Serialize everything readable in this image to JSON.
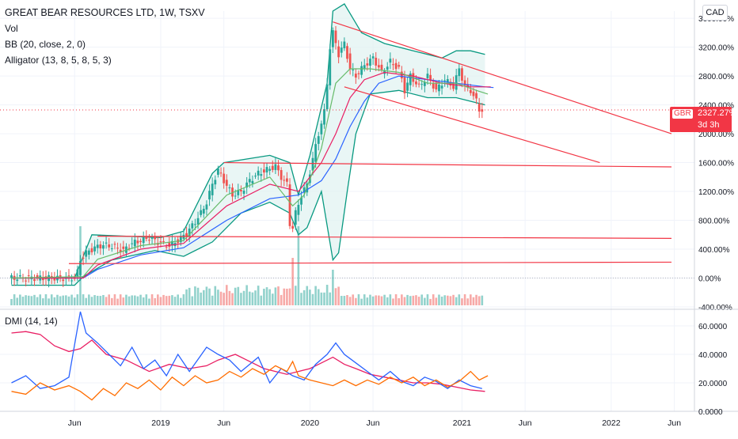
{
  "legend": {
    "title": "GREAT BEAR RESOURCES LTD, 1W, TSXV",
    "vol": "Vol",
    "bb": "BB (20, close, 2, 0)",
    "alligator": "Alligator (13, 8, 5, 8, 5, 3)"
  },
  "dmi_legend": "DMI (14, 14)",
  "currency": "CAD",
  "price_badge": {
    "symbol": "GBR",
    "value": "2327.27%",
    "countdown": "3d 3h"
  },
  "colors": {
    "up": "#26a69a",
    "down": "#ef5350",
    "trendline": "#f23645",
    "bb_upper": "#089981",
    "bb_fill": "#e0f2f1",
    "jaw": "#2962ff",
    "teeth": "#e91e63",
    "lips": "#66bb6a",
    "di_plus": "#2962ff",
    "di_minus": "#ff6d00",
    "adx": "#e91e63"
  },
  "chart_data": [
    {
      "type": "candlestick",
      "title": "GREAT BEAR RESOURCES LTD, 1W, TSXV",
      "ylabel": "",
      "x_ticks": [
        "Jun",
        "2019",
        "Jun",
        "2020",
        "Jun",
        "2021",
        "Jun",
        "2022",
        "Jun"
      ],
      "y_ticks": [
        "3600.00%",
        "3200.00%",
        "2800.00%",
        "2400.00%",
        "2000.00%",
        "1600.00%",
        "1200.00%",
        "800.00%",
        "400.00%",
        "0.00%",
        "-400.00%"
      ],
      "ylim": [
        -400,
        3700
      ],
      "x_axis": "weeks from Jan 2018 to Dec 2022",
      "price_path": [
        [
          0,
          0
        ],
        [
          23,
          0
        ],
        [
          24,
          80
        ],
        [
          25,
          250
        ],
        [
          27,
          350
        ],
        [
          30,
          420
        ],
        [
          33,
          460
        ],
        [
          37,
          430
        ],
        [
          40,
          380
        ],
        [
          43,
          480
        ],
        [
          46,
          520
        ],
        [
          49,
          560
        ],
        [
          52,
          500
        ],
        [
          56,
          450
        ],
        [
          59,
          520
        ],
        [
          62,
          620
        ],
        [
          65,
          780
        ],
        [
          67,
          900
        ],
        [
          69,
          1050
        ],
        [
          71,
          1300
        ],
        [
          73,
          1500
        ],
        [
          75,
          1350
        ],
        [
          78,
          1150
        ],
        [
          81,
          1200
        ],
        [
          84,
          1350
        ],
        [
          87,
          1450
        ],
        [
          90,
          1500
        ],
        [
          93,
          1550
        ],
        [
          95,
          1400
        ],
        [
          97,
          1300
        ],
        [
          98,
          750
        ],
        [
          99,
          700
        ],
        [
          100,
          900
        ],
        [
          102,
          1150
        ],
        [
          104,
          1300
        ],
        [
          106,
          1650
        ],
        [
          108,
          2000
        ],
        [
          110,
          2300
        ],
        [
          111,
          2700
        ],
        [
          112,
          3200
        ],
        [
          113,
          3400
        ],
        [
          115,
          3100
        ],
        [
          117,
          3250
        ],
        [
          119,
          2900
        ],
        [
          121,
          2800
        ],
        [
          124,
          2950
        ],
        [
          127,
          3050
        ],
        [
          130,
          2850
        ],
        [
          133,
          3000
        ],
        [
          136,
          2900
        ],
        [
          138,
          2600
        ],
        [
          140,
          2800
        ],
        [
          143,
          2650
        ],
        [
          146,
          2800
        ],
        [
          149,
          2600
        ],
        [
          152,
          2750
        ],
        [
          155,
          2650
        ],
        [
          157,
          2900
        ],
        [
          159,
          2650
        ],
        [
          161,
          2600
        ],
        [
          163,
          2450
        ],
        [
          164,
          2330
        ]
      ],
      "bb_upper_path": [
        [
          0,
          0
        ],
        [
          22,
          0
        ],
        [
          25,
          300
        ],
        [
          28,
          600
        ],
        [
          40,
          580
        ],
        [
          52,
          560
        ],
        [
          60,
          650
        ],
        [
          70,
          1450
        ],
        [
          74,
          1600
        ],
        [
          90,
          1700
        ],
        [
          97,
          1600
        ],
        [
          100,
          1150
        ],
        [
          104,
          1700
        ],
        [
          110,
          2700
        ],
        [
          112,
          3700
        ],
        [
          116,
          3800
        ],
        [
          122,
          3400
        ],
        [
          130,
          3250
        ],
        [
          140,
          3150
        ],
        [
          150,
          3050
        ],
        [
          155,
          3150
        ],
        [
          160,
          3150
        ],
        [
          165,
          3100
        ]
      ],
      "bb_lower_path": [
        [
          0,
          -100
        ],
        [
          22,
          -100
        ],
        [
          25,
          20
        ],
        [
          35,
          250
        ],
        [
          50,
          380
        ],
        [
          60,
          300
        ],
        [
          70,
          500
        ],
        [
          80,
          900
        ],
        [
          90,
          1050
        ],
        [
          97,
          900
        ],
        [
          100,
          600
        ],
        [
          103,
          700
        ],
        [
          108,
          1200
        ],
        [
          112,
          250
        ],
        [
          114,
          350
        ],
        [
          117,
          1200
        ],
        [
          120,
          2000
        ],
        [
          125,
          2550
        ],
        [
          135,
          2600
        ],
        [
          145,
          2500
        ],
        [
          155,
          2500
        ],
        [
          165,
          2400
        ]
      ],
      "jaw_path": [
        [
          0,
          0
        ],
        [
          25,
          0
        ],
        [
          30,
          120
        ],
        [
          45,
          320
        ],
        [
          60,
          420
        ],
        [
          75,
          800
        ],
        [
          90,
          1100
        ],
        [
          100,
          1150
        ],
        [
          108,
          1350
        ],
        [
          113,
          1650
        ],
        [
          118,
          2100
        ],
        [
          123,
          2450
        ],
        [
          128,
          2700
        ],
        [
          135,
          2800
        ],
        [
          145,
          2750
        ],
        [
          155,
          2700
        ],
        [
          165,
          2650
        ],
        [
          168,
          2640
        ]
      ],
      "teeth_path": [
        [
          0,
          0
        ],
        [
          25,
          0
        ],
        [
          30,
          180
        ],
        [
          45,
          400
        ],
        [
          60,
          480
        ],
        [
          75,
          1000
        ],
        [
          90,
          1300
        ],
        [
          100,
          1200
        ],
        [
          108,
          1600
        ],
        [
          113,
          2000
        ],
        [
          118,
          2500
        ],
        [
          123,
          2750
        ],
        [
          130,
          2850
        ],
        [
          140,
          2800
        ],
        [
          150,
          2700
        ],
        [
          160,
          2650
        ],
        [
          167,
          2650
        ]
      ],
      "lips_path": [
        [
          0,
          0
        ],
        [
          25,
          20
        ],
        [
          30,
          260
        ],
        [
          45,
          450
        ],
        [
          60,
          520
        ],
        [
          75,
          1150
        ],
        [
          90,
          1400
        ],
        [
          98,
          1000
        ],
        [
          102,
          1150
        ],
        [
          108,
          1800
        ],
        [
          113,
          2700
        ],
        [
          118,
          2900
        ],
        [
          125,
          2900
        ],
        [
          135,
          2850
        ],
        [
          145,
          2700
        ],
        [
          155,
          2700
        ],
        [
          162,
          2600
        ],
        [
          166,
          2550
        ]
      ],
      "volume_spikes": [
        [
          24,
          1.0
        ],
        [
          98,
          0.6
        ],
        [
          100,
          1.0
        ],
        [
          112,
          0.45
        ]
      ],
      "trendlines": [
        {
          "from": [
            112,
            3550
          ],
          "to": [
            230,
            2000
          ]
        },
        {
          "from": [
            116,
            2650
          ],
          "to": [
            205,
            1600
          ]
        },
        {
          "from": [
            74,
            1600
          ],
          "to": [
            230,
            1540
          ]
        },
        {
          "from": [
            30,
            580
          ],
          "to": [
            230,
            550
          ]
        },
        {
          "from": [
            20,
            200
          ],
          "to": [
            230,
            220
          ]
        }
      ]
    },
    {
      "type": "line",
      "title": "DMI (14, 14)",
      "y_ticks": [
        "60.0000",
        "40.0000",
        "20.0000",
        "0.0000"
      ],
      "ylim": [
        0,
        70
      ],
      "series": [
        {
          "name": "",
          "values": [
            [
              0,
              55
            ],
            [
              5,
              56
            ],
            [
              10,
              54
            ],
            [
              15,
              46
            ],
            [
              20,
              42
            ],
            [
              24,
              44
            ],
            [
              28,
              50
            ],
            [
              33,
              40
            ],
            [
              40,
              36
            ],
            [
              48,
              28
            ],
            [
              55,
              33
            ],
            [
              62,
              30
            ],
            [
              68,
              32
            ],
            [
              72,
              36
            ],
            [
              78,
              40
            ],
            [
              82,
              36
            ],
            [
              88,
              30
            ],
            [
              92,
              28
            ],
            [
              96,
              26
            ],
            [
              100,
              28
            ],
            [
              104,
              30
            ],
            [
              108,
              34
            ],
            [
              112,
              38
            ],
            [
              116,
              33
            ],
            [
              120,
              30
            ],
            [
              125,
              26
            ],
            [
              130,
              24
            ],
            [
              135,
              22
            ],
            [
              140,
              20
            ],
            [
              145,
              20
            ],
            [
              150,
              19
            ],
            [
              155,
              17
            ],
            [
              160,
              15
            ],
            [
              165,
              14
            ]
          ]
        },
        {
          "name": "",
          "values": [
            [
              0,
              20
            ],
            [
              5,
              25
            ],
            [
              10,
              16
            ],
            [
              15,
              18
            ],
            [
              20,
              24
            ],
            [
              24,
              70
            ],
            [
              26,
              55
            ],
            [
              30,
              48
            ],
            [
              34,
              40
            ],
            [
              38,
              32
            ],
            [
              42,
              45
            ],
            [
              46,
              30
            ],
            [
              50,
              36
            ],
            [
              54,
              25
            ],
            [
              58,
              40
            ],
            [
              62,
              28
            ],
            [
              68,
              45
            ],
            [
              72,
              40
            ],
            [
              76,
              36
            ],
            [
              80,
              28
            ],
            [
              86,
              38
            ],
            [
              90,
              20
            ],
            [
              94,
              30
            ],
            [
              98,
              25
            ],
            [
              102,
              22
            ],
            [
              106,
              33
            ],
            [
              110,
              40
            ],
            [
              113,
              48
            ],
            [
              116,
              40
            ],
            [
              120,
              34
            ],
            [
              124,
              28
            ],
            [
              128,
              22
            ],
            [
              132,
              28
            ],
            [
              136,
              21
            ],
            [
              140,
              18
            ],
            [
              144,
              24
            ],
            [
              148,
              21
            ],
            [
              152,
              16
            ],
            [
              156,
              22
            ],
            [
              160,
              18
            ],
            [
              164,
              16
            ]
          ]
        },
        {
          "name": "",
          "values": [
            [
              0,
              14
            ],
            [
              5,
              12
            ],
            [
              10,
              20
            ],
            [
              15,
              15
            ],
            [
              20,
              18
            ],
            [
              24,
              14
            ],
            [
              28,
              8
            ],
            [
              32,
              16
            ],
            [
              36,
              11
            ],
            [
              40,
              20
            ],
            [
              44,
              16
            ],
            [
              48,
              22
            ],
            [
              52,
              15
            ],
            [
              56,
              24
            ],
            [
              60,
              18
            ],
            [
              64,
              25
            ],
            [
              68,
              20
            ],
            [
              72,
              22
            ],
            [
              76,
              28
            ],
            [
              80,
              24
            ],
            [
              84,
              30
            ],
            [
              88,
              26
            ],
            [
              92,
              32
            ],
            [
              96,
              28
            ],
            [
              98,
              35
            ],
            [
              100,
              25
            ],
            [
              104,
              22
            ],
            [
              108,
              20
            ],
            [
              112,
              18
            ],
            [
              116,
              22
            ],
            [
              120,
              18
            ],
            [
              124,
              22
            ],
            [
              128,
              19
            ],
            [
              132,
              24
            ],
            [
              136,
              20
            ],
            [
              140,
              24
            ],
            [
              144,
              18
            ],
            [
              148,
              22
            ],
            [
              152,
              17
            ],
            [
              156,
              21
            ],
            [
              160,
              28
            ],
            [
              163,
              22
            ],
            [
              166,
              25
            ]
          ]
        }
      ]
    }
  ]
}
